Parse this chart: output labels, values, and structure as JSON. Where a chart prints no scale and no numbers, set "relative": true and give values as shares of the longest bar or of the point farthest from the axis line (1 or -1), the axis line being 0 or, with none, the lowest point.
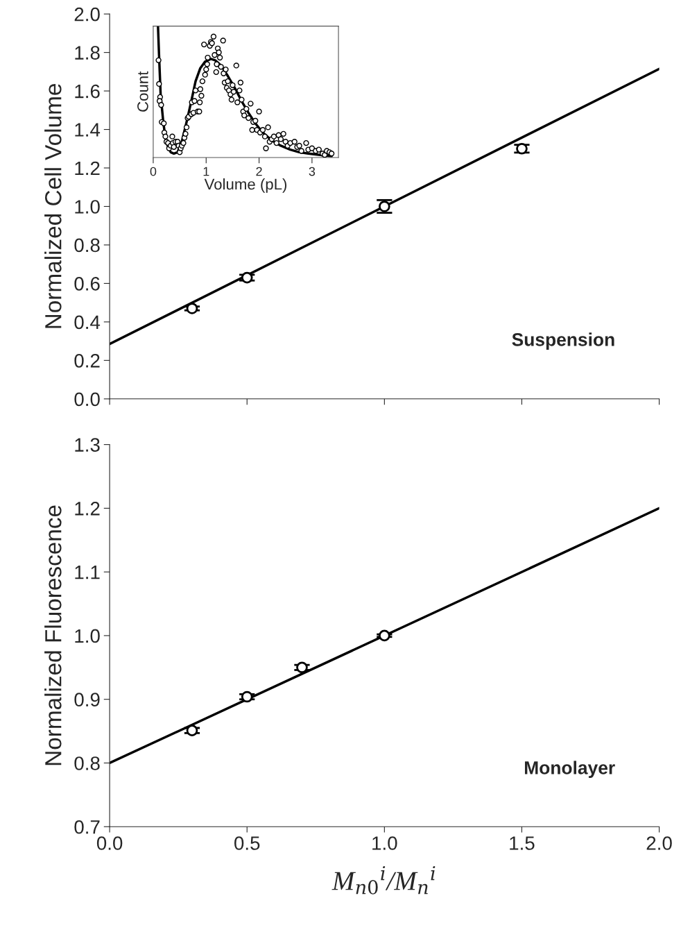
{
  "chart_data": [
    {
      "type": "scatter",
      "ylabel": "Normalized Cell Volume",
      "xlim": [
        0,
        2
      ],
      "xticks": [
        0,
        0.5,
        1,
        1.5,
        2
      ],
      "ylim": [
        0,
        2
      ],
      "yticks": [
        {
          "value": 0,
          "label": "0.0"
        },
        {
          "value": 0.2,
          "label": "0.2"
        },
        {
          "value": 0.4,
          "label": "0.4"
        },
        {
          "value": 0.6,
          "label": "0.6"
        },
        {
          "value": 0.8,
          "label": "0.8"
        },
        {
          "value": 1,
          "label": "1.0"
        },
        {
          "value": 1.2,
          "label": "1.2"
        },
        {
          "value": 1.4,
          "label": "1.4"
        },
        {
          "value": 1.6,
          "label": "1.6"
        },
        {
          "value": 1.8,
          "label": "1.8"
        },
        {
          "value": 2,
          "label": "2.0"
        }
      ],
      "tick_labels": "y",
      "grid": false,
      "legend": false,
      "annotations": [
        "Suspension"
      ],
      "series": [
        {
          "marker": "circle",
          "color": "#000000",
          "x": [
            0.3,
            0.5,
            1.0,
            1.5
          ],
          "values": [
            0.47,
            0.63,
            1.0,
            1.3
          ],
          "errors": [
            0.01,
            0.015,
            0.033,
            0.02
          ]
        },
        {
          "type": "line",
          "color": "#000000",
          "x": [
            0,
            2
          ],
          "values": [
            0.285,
            1.715
          ]
        }
      ]
    },
    {
      "type": "scatter",
      "xlabel": "Volume (pL)",
      "ylabel": "Count",
      "relative": true,
      "xlim": [
        0,
        3.5
      ],
      "xticks": [
        0,
        1,
        2,
        3
      ],
      "tick_labels": "x",
      "grid": false,
      "legend": false,
      "series": [
        {
          "marker": "circle",
          "color": "#000000",
          "x": [
            0.1,
            0.11,
            0.13,
            0.12,
            0.15,
            0.16,
            0.2,
            0.21,
            0.23,
            0.25,
            0.28,
            0.3,
            0.33,
            0.36,
            0.37,
            0.39,
            0.42,
            0.46,
            0.48,
            0.5,
            0.52,
            0.54,
            0.57,
            0.59,
            0.61,
            0.63,
            0.65,
            0.67,
            0.72,
            0.73,
            0.76,
            0.78,
            0.8,
            0.84,
            0.87,
            0.88,
            0.91,
            0.89,
            0.93,
            0.96,
            0.98,
            1.0,
            1.02,
            1.03,
            1.07,
            1.09,
            1.11,
            1.14,
            1.16,
            1.19,
            1.2,
            1.22,
            1.24,
            1.26,
            1.28,
            1.32,
            1.33,
            1.35,
            1.37,
            1.39,
            1.41,
            1.43,
            1.46,
            1.48,
            1.5,
            1.52,
            1.57,
            1.59,
            1.63,
            1.65,
            1.67,
            1.7,
            1.72,
            1.76,
            1.8,
            1.84,
            1.87,
            1.89,
            1.93,
            1.96,
            2.0,
            2.02,
            2.07,
            2.11,
            2.13,
            2.17,
            2.2,
            2.24,
            2.28,
            2.33,
            2.37,
            2.41,
            2.46,
            2.5,
            2.54,
            2.59,
            2.67,
            2.72,
            2.76,
            2.8,
            2.89,
            2.93,
            3.0,
            3.07,
            3.13,
            3.2,
            3.24,
            3.28,
            3.33,
            3.37
          ],
          "values": [
            0.74,
            0.56,
            0.46,
            0.43,
            0.4,
            0.27,
            0.26,
            0.19,
            0.16,
            0.12,
            0.11,
            0.07,
            0.09,
            0.16,
            0.11,
            0.08,
            0.12,
            0.12,
            0.09,
            0.04,
            0.07,
            0.09,
            0.11,
            0.15,
            0.18,
            0.23,
            0.3,
            0.31,
            0.33,
            0.42,
            0.34,
            0.43,
            0.51,
            0.35,
            0.35,
            0.42,
            0.47,
            0.52,
            0.58,
            0.86,
            0.63,
            0.67,
            0.71,
            0.76,
            0.85,
            0.88,
            0.87,
            0.92,
            0.78,
            0.65,
            0.71,
            0.83,
            0.8,
            0.76,
            0.69,
            0.89,
            0.64,
            0.57,
            0.67,
            0.53,
            0.58,
            0.51,
            0.48,
            0.44,
            0.55,
            0.5,
            0.7,
            0.42,
            0.51,
            0.57,
            0.44,
            0.35,
            0.32,
            0.37,
            0.3,
            0.41,
            0.21,
            0.27,
            0.28,
            0.21,
            0.35,
            0.19,
            0.21,
            0.16,
            0.07,
            0.23,
            0.12,
            0.14,
            0.16,
            0.11,
            0.17,
            0.14,
            0.18,
            0.12,
            0.09,
            0.11,
            0.12,
            0.08,
            0.09,
            0.05,
            0.11,
            0.06,
            0.07,
            0.05,
            0.06,
            0.03,
            0.02,
            0.05,
            0.04,
            0.03
          ]
        },
        {
          "type": "line",
          "color": "#000000",
          "x": [
            0.09,
            0.11,
            0.14,
            0.19,
            0.24,
            0.33,
            0.39,
            0.46,
            0.54,
            0.63,
            0.72,
            0.8,
            0.89,
            0.98,
            1.09,
            1.17,
            1.28,
            1.41,
            1.54,
            1.67,
            1.8,
            1.93,
            2.07,
            2.24,
            2.41,
            2.59,
            2.76,
            2.93,
            3.15,
            3.37
          ],
          "values": [
            1.0,
            0.78,
            0.48,
            0.27,
            0.12,
            0.04,
            0.03,
            0.04,
            0.12,
            0.27,
            0.43,
            0.58,
            0.68,
            0.73,
            0.75,
            0.74,
            0.7,
            0.62,
            0.53,
            0.43,
            0.34,
            0.26,
            0.19,
            0.13,
            0.09,
            0.06,
            0.04,
            0.03,
            0.02,
            0.01
          ]
        }
      ]
    },
    {
      "type": "scatter",
      "xlabel": "M$_{n0}$$^{i}$/M$_{n}$$^{i}$",
      "ylabel": "Normalized Fluorescence",
      "xlim": [
        0,
        2
      ],
      "xticks": [
        {
          "value": 0,
          "label": "0.0"
        },
        {
          "value": 0.5,
          "label": "0.5"
        },
        {
          "value": 1,
          "label": "1.0"
        },
        {
          "value": 1.5,
          "label": "1.5"
        },
        {
          "value": 2,
          "label": "2.0"
        }
      ],
      "ylim": [
        0.7,
        1.3
      ],
      "yticks": [
        {
          "value": 0.7,
          "label": "0.7"
        },
        {
          "value": 0.8,
          "label": "0.8"
        },
        {
          "value": 0.9,
          "label": "0.9"
        },
        {
          "value": 1.0,
          "label": "1.0"
        },
        {
          "value": 1.1,
          "label": "1.1"
        },
        {
          "value": 1.2,
          "label": "1.2"
        },
        {
          "value": 1.3,
          "label": "1.3"
        }
      ],
      "grid": false,
      "legend": false,
      "annotations": [
        "Monolayer"
      ],
      "series": [
        {
          "marker": "circle",
          "color": "#000000",
          "x": [
            0.3,
            0.5,
            0.7,
            1.0
          ],
          "values": [
            0.851,
            0.904,
            0.95,
            1.0
          ],
          "errors": [
            0.004,
            0.004,
            0.004,
            0.002
          ]
        },
        {
          "type": "line",
          "color": "#000000",
          "x": [
            0,
            2
          ],
          "values": [
            0.8,
            1.2
          ]
        }
      ]
    }
  ]
}
